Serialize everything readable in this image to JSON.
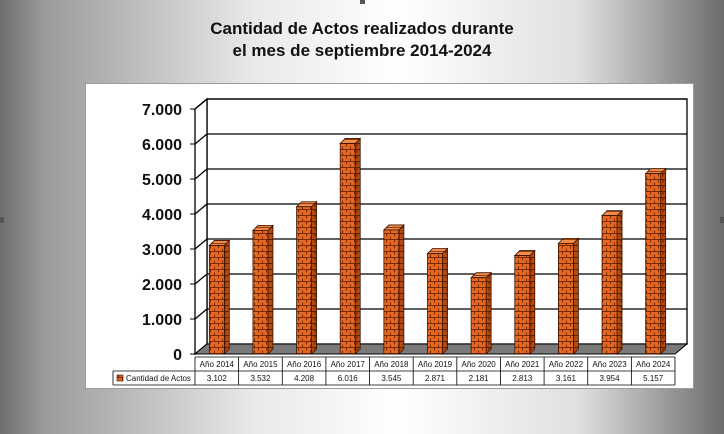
{
  "chart_data": {
    "type": "bar",
    "title_line1": "Cantidad de Actos realizados durante",
    "title_line2": "el mes de septiembre 2014-2024",
    "categories": [
      "Año 2014",
      "Año 2015",
      "Año 2016",
      "Año 2017",
      "Año 2018",
      "Año 2019",
      "Año 2020",
      "Año 2021",
      "Año 2022",
      "Año 2023",
      "Año 2024"
    ],
    "series": [
      {
        "name": "Cantidad de Actos",
        "values": [
          3102,
          3532,
          4208,
          6016,
          3545,
          2871,
          2181,
          2813,
          3161,
          3954,
          5157
        ],
        "labels": [
          "3.102",
          "3.532",
          "4.208",
          "6.016",
          "3.545",
          "2.871",
          "2.181",
          "2.813",
          "3.161",
          "3.954",
          "5.157"
        ]
      }
    ],
    "ylim": [
      0,
      7000
    ],
    "yticks": [
      0,
      1000,
      2000,
      3000,
      4000,
      5000,
      6000,
      7000
    ],
    "ytick_labels": [
      "0",
      "1.000",
      "2.000",
      "3.000",
      "4.000",
      "5.000",
      "6.000",
      "7.000"
    ],
    "grid": true,
    "data_table": true,
    "bar_color": "#e8671e",
    "brick_color": "#7a2a00"
  }
}
